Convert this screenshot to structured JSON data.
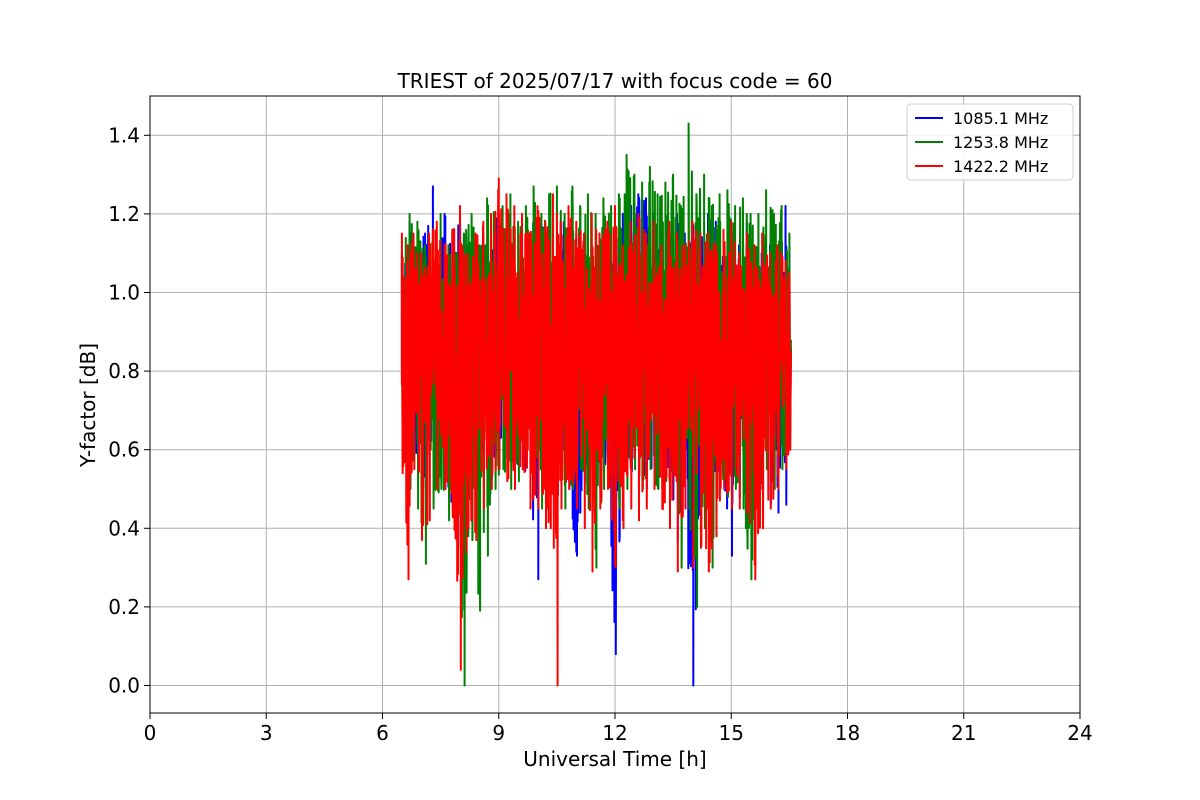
{
  "chart_data": {
    "type": "line",
    "title": "TRIEST of 2025/07/17 with focus code = 60",
    "xlabel": "Universal Time [h]",
    "ylabel": "Y-factor [dB]",
    "xlim": [
      0,
      24
    ],
    "ylim": [
      -0.07,
      1.5
    ],
    "xticks": [
      0,
      3,
      6,
      9,
      12,
      15,
      18,
      21,
      24
    ],
    "yticks": [
      0.0,
      0.2,
      0.4,
      0.6,
      0.8,
      1.0,
      1.2,
      1.4
    ],
    "grid": true,
    "legend_position": "top-right",
    "series": [
      {
        "name": "1085.1 MHz",
        "color": "#0000ff",
        "x": [
          6.5,
          6.7,
          6.9,
          7.1,
          7.3,
          7.4,
          7.6,
          7.8,
          8.0,
          8.2,
          8.4,
          8.6,
          8.8,
          9.0,
          9.2,
          9.4,
          9.6,
          9.8,
          10.0,
          10.2,
          10.4,
          10.6,
          10.8,
          11.0,
          11.2,
          11.4,
          11.6,
          11.8,
          12.0,
          12.2,
          12.4,
          12.6,
          12.8,
          13.0,
          13.2,
          13.4,
          13.6,
          13.8,
          14.0,
          14.2,
          14.4,
          14.6,
          14.8,
          15.0,
          15.2,
          15.4,
          15.6,
          15.8,
          16.0,
          16.2,
          16.4,
          16.5
        ],
        "min": [
          0.6,
          0.52,
          0.55,
          0.5,
          0.56,
          0.6,
          0.5,
          0.44,
          0.35,
          0.48,
          0.5,
          0.55,
          0.52,
          0.6,
          0.58,
          0.56,
          0.55,
          0.52,
          0.27,
          0.5,
          0.55,
          0.6,
          0.5,
          0.33,
          0.52,
          0.55,
          0.5,
          0.58,
          0.08,
          0.5,
          0.55,
          0.52,
          0.5,
          0.55,
          0.5,
          0.52,
          0.37,
          0.5,
          0.0,
          0.45,
          0.5,
          0.55,
          0.5,
          0.33,
          0.48,
          0.5,
          0.52,
          0.48,
          0.46,
          0.44,
          0.46,
          0.6
        ],
        "max": [
          1.1,
          1.18,
          1.12,
          1.15,
          1.27,
          1.1,
          1.2,
          1.15,
          1.2,
          1.12,
          1.1,
          1.15,
          1.18,
          1.2,
          1.22,
          1.12,
          1.15,
          1.1,
          1.2,
          1.15,
          1.12,
          1.18,
          1.2,
          1.15,
          1.1,
          1.12,
          1.15,
          1.1,
          1.18,
          1.2,
          1.22,
          1.25,
          1.24,
          1.2,
          1.18,
          1.15,
          1.2,
          1.15,
          1.18,
          1.15,
          1.2,
          1.18,
          1.1,
          1.15,
          1.12,
          1.18,
          1.1,
          1.15,
          1.12,
          1.1,
          1.22,
          1.1
        ],
        "mean": 0.86
      },
      {
        "name": "1253.8 MHz",
        "color": "#008000",
        "x": [
          6.5,
          6.7,
          6.9,
          7.1,
          7.3,
          7.5,
          7.7,
          7.9,
          8.1,
          8.3,
          8.5,
          8.7,
          8.9,
          9.1,
          9.3,
          9.5,
          9.7,
          9.9,
          10.1,
          10.3,
          10.5,
          10.7,
          10.9,
          11.1,
          11.3,
          11.5,
          11.7,
          11.9,
          12.1,
          12.3,
          12.5,
          12.7,
          12.9,
          13.1,
          13.3,
          13.5,
          13.7,
          13.9,
          14.1,
          14.3,
          14.5,
          14.7,
          14.9,
          15.1,
          15.3,
          15.5,
          15.7,
          15.9,
          16.1,
          16.3,
          16.5
        ],
        "min": [
          0.58,
          0.5,
          0.45,
          0.31,
          0.45,
          0.5,
          0.42,
          0.45,
          0.0,
          0.37,
          0.19,
          0.33,
          0.5,
          0.55,
          0.5,
          0.52,
          0.6,
          0.55,
          0.45,
          0.52,
          0.6,
          0.45,
          0.5,
          0.55,
          0.45,
          0.3,
          0.5,
          0.55,
          0.45,
          0.5,
          0.55,
          0.5,
          0.55,
          0.5,
          0.52,
          0.55,
          0.3,
          0.45,
          0.2,
          0.4,
          0.3,
          0.5,
          0.48,
          0.5,
          0.45,
          0.27,
          0.5,
          0.55,
          0.5,
          0.55,
          0.6
        ],
        "max": [
          1.1,
          1.2,
          1.18,
          1.12,
          1.15,
          1.2,
          1.12,
          1.1,
          1.15,
          1.2,
          1.12,
          1.24,
          1.2,
          1.22,
          1.25,
          1.18,
          1.22,
          1.27,
          1.2,
          1.25,
          1.27,
          1.2,
          1.27,
          1.22,
          1.25,
          1.2,
          1.24,
          1.22,
          1.25,
          1.35,
          1.3,
          1.28,
          1.32,
          1.25,
          1.28,
          1.3,
          1.22,
          1.43,
          1.25,
          1.3,
          1.22,
          1.25,
          1.26,
          1.22,
          1.24,
          1.2,
          1.2,
          1.26,
          1.2,
          1.22,
          1.15
        ],
        "mean": 0.88
      },
      {
        "name": "1422.2 MHz",
        "color": "#ff0000",
        "x": [
          6.5,
          6.65,
          6.8,
          7.0,
          7.2,
          7.4,
          7.6,
          7.8,
          8.0,
          8.2,
          8.4,
          8.6,
          8.8,
          9.0,
          9.2,
          9.4,
          9.6,
          9.8,
          10.0,
          10.2,
          10.4,
          10.5,
          10.6,
          10.8,
          11.0,
          11.2,
          11.4,
          11.6,
          11.8,
          12.0,
          12.2,
          12.4,
          12.6,
          12.8,
          13.0,
          13.2,
          13.4,
          13.6,
          13.8,
          14.0,
          14.2,
          14.4,
          14.6,
          14.8,
          15.0,
          15.2,
          15.4,
          15.6,
          15.8,
          16.0,
          16.2,
          16.4,
          16.5
        ],
        "min": [
          0.54,
          0.27,
          0.55,
          0.37,
          0.42,
          0.5,
          0.5,
          0.44,
          0.04,
          0.4,
          0.37,
          0.45,
          0.5,
          0.55,
          0.52,
          0.5,
          0.55,
          0.45,
          0.45,
          0.4,
          0.35,
          0.0,
          0.45,
          0.5,
          0.45,
          0.4,
          0.29,
          0.45,
          0.5,
          0.3,
          0.4,
          0.45,
          0.42,
          0.45,
          0.5,
          0.45,
          0.4,
          0.29,
          0.45,
          0.3,
          0.35,
          0.29,
          0.38,
          0.5,
          0.45,
          0.45,
          0.45,
          0.27,
          0.4,
          0.45,
          0.5,
          0.55,
          0.6
        ],
        "max": [
          1.15,
          1.12,
          1.15,
          1.1,
          1.15,
          1.18,
          1.12,
          1.16,
          1.22,
          1.1,
          1.15,
          1.18,
          1.2,
          1.29,
          1.25,
          1.22,
          1.2,
          1.15,
          1.22,
          1.18,
          1.25,
          1.2,
          1.18,
          1.22,
          1.18,
          1.15,
          1.2,
          1.15,
          1.18,
          1.22,
          1.12,
          1.18,
          1.2,
          1.15,
          1.18,
          1.12,
          1.18,
          1.15,
          1.12,
          1.18,
          1.15,
          1.15,
          1.12,
          1.16,
          1.18,
          1.1,
          1.15,
          1.12,
          1.15,
          1.1,
          1.12,
          1.08,
          1.05
        ],
        "mean": 0.85
      }
    ]
  }
}
